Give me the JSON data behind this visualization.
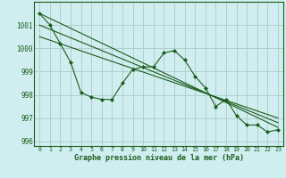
{
  "title": "Graphe pression niveau de la mer (hPa)",
  "background_color": "#d0eef0",
  "grid_color": "#b0d0d0",
  "line_color": "#1a5c1a",
  "xlim": [
    -0.5,
    23.5
  ],
  "ylim": [
    995.8,
    1002.0
  ],
  "yticks": [
    996,
    997,
    998,
    999,
    1000,
    1001
  ],
  "xticks": [
    0,
    1,
    2,
    3,
    4,
    5,
    6,
    7,
    8,
    9,
    10,
    11,
    12,
    13,
    14,
    15,
    16,
    17,
    18,
    19,
    20,
    21,
    22,
    23
  ],
  "main_series_x": [
    0,
    1,
    2,
    3,
    4,
    5,
    6,
    7,
    8,
    9,
    10,
    11,
    12,
    13,
    14,
    15,
    16,
    17,
    18,
    19,
    20,
    21,
    22,
    23
  ],
  "main_series_y": [
    1001.5,
    1001.0,
    1000.2,
    999.4,
    998.1,
    997.9,
    997.8,
    997.8,
    998.5,
    999.1,
    999.2,
    999.2,
    999.8,
    999.9,
    999.5,
    998.8,
    998.3,
    997.5,
    997.8,
    997.1,
    996.7,
    996.7,
    996.4,
    996.5
  ],
  "trend1_x": [
    0,
    23
  ],
  "trend1_y": [
    1001.5,
    996.6
  ],
  "trend2_x": [
    0,
    23
  ],
  "trend2_y": [
    1001.0,
    996.8
  ],
  "trend3_x": [
    0,
    23
  ],
  "trend3_y": [
    1000.5,
    997.0
  ],
  "xtick_labels": [
    "0",
    "1",
    "2",
    "3",
    "4",
    "5",
    "6",
    "7",
    "8",
    "9",
    "10",
    "11",
    "12",
    "13",
    "14",
    "15",
    "16",
    "17",
    "18",
    "19",
    "20",
    "21",
    "22",
    "23"
  ]
}
